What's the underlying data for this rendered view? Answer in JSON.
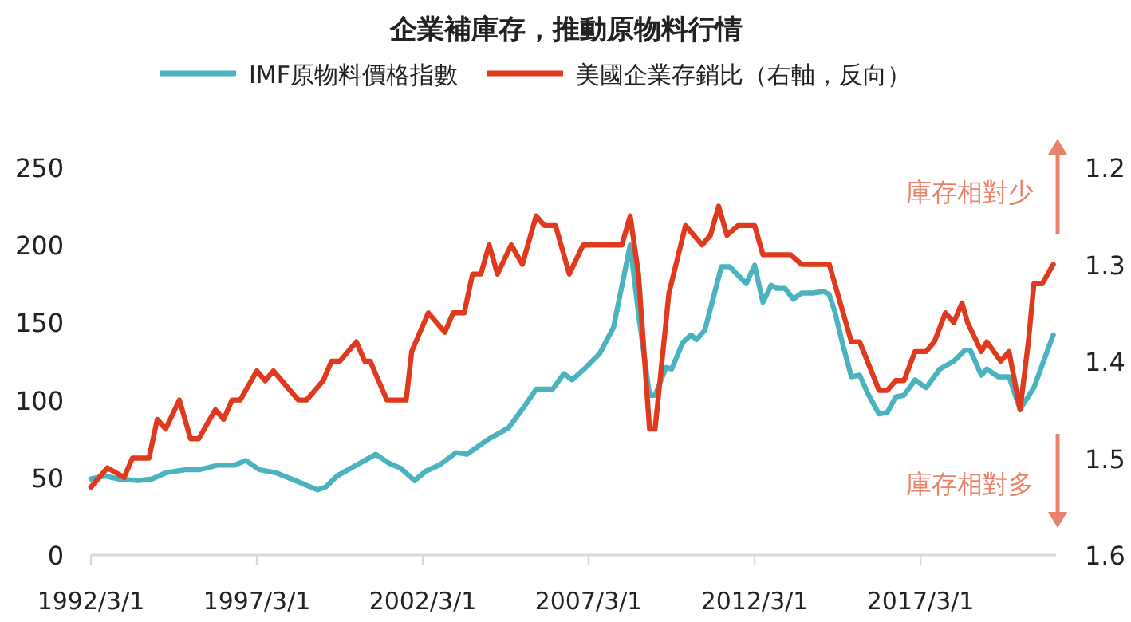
{
  "chart_data": {
    "type": "line",
    "title": "企業補庫存，推動原物料行情",
    "legend": "top",
    "line_style": "solid",
    "xlim": [
      "1992-03",
      "2021-04"
    ],
    "xticks": [
      {
        "value": "1992-03",
        "label": "1992/3/1"
      },
      {
        "value": "1997-03",
        "label": "1997/3/1"
      },
      {
        "value": "2002-03",
        "label": "2002/3/1"
      },
      {
        "value": "2007-03",
        "label": "2007/3/1"
      },
      {
        "value": "2012-03",
        "label": "2012/3/1"
      },
      {
        "value": "2017-03",
        "label": "2017/3/1"
      }
    ],
    "ylim": [
      0,
      250
    ],
    "yticks": [
      0,
      50,
      100,
      150,
      200,
      250
    ],
    "y2lim": [
      1.6,
      1.2
    ],
    "y2ticks": [
      1.2,
      1.3,
      1.4,
      1.5,
      1.6
    ],
    "annotations": [
      "庫存相對少",
      "庫存相對多"
    ],
    "series": [
      {
        "name": "IMF原物料價格指數",
        "color": "#4bb3c0",
        "x": [
          "1992-03",
          "1992-08",
          "1993-01",
          "1993-08",
          "1994-01",
          "1994-06",
          "1995-01",
          "1995-06",
          "1996-01",
          "1996-07",
          "1996-11",
          "1997-04",
          "1997-10",
          "1998-05",
          "1999-01",
          "1999-04",
          "1999-08",
          "2000-03",
          "2000-10",
          "2001-03",
          "2001-07",
          "2001-12",
          "2002-04",
          "2002-09",
          "2003-03",
          "2003-07",
          "2004-03",
          "2004-10",
          "2005-03",
          "2005-08",
          "2006-02",
          "2006-06",
          "2006-09",
          "2007-02",
          "2007-07",
          "2007-12",
          "2008-06",
          "2008-09",
          "2009-01",
          "2009-03",
          "2009-07",
          "2009-09",
          "2010-01",
          "2010-04",
          "2010-06",
          "2010-09",
          "2011-03",
          "2011-06",
          "2011-12",
          "2012-03",
          "2012-06",
          "2012-09",
          "2012-11",
          "2013-02",
          "2013-05",
          "2013-08",
          "2013-12",
          "2014-04",
          "2014-06",
          "2014-08",
          "2014-11",
          "2015-02",
          "2015-05",
          "2015-08",
          "2015-12",
          "2016-03",
          "2016-06",
          "2016-09",
          "2017-01",
          "2017-05",
          "2017-10",
          "2018-03",
          "2018-07",
          "2018-09",
          "2019-01",
          "2019-03",
          "2019-07",
          "2019-11",
          "2020-03",
          "2020-08",
          "2021-03"
        ],
        "values": [
          49,
          51,
          49,
          48,
          49,
          53,
          55,
          55,
          58,
          58,
          61,
          55,
          53,
          48,
          42,
          44,
          51,
          58,
          65,
          59,
          56,
          48,
          54,
          58,
          66,
          65,
          75,
          82,
          94,
          107,
          107,
          117,
          113,
          121,
          130,
          147,
          200,
          156,
          103,
          103,
          121,
          120,
          137,
          142,
          139,
          145,
          186,
          186,
          175,
          187,
          163,
          174,
          172,
          172,
          165,
          169,
          169,
          170,
          168,
          157,
          135,
          115,
          116,
          104,
          91,
          92,
          102,
          103,
          113,
          108,
          120,
          125,
          132,
          132,
          116,
          120,
          115,
          115,
          94,
          108,
          142
        ]
      },
      {
        "name": "美國企業存銷比（右軸，反向）",
        "color": "#e03a1e",
        "axis": "y2",
        "x": [
          "1992-03",
          "1992-09",
          "1993-03",
          "1993-06",
          "1993-12",
          "1994-03",
          "1994-06",
          "1994-11",
          "1995-03",
          "1995-06",
          "1995-12",
          "1996-03",
          "1996-06",
          "1996-09",
          "1997-03",
          "1997-06",
          "1997-09",
          "1998-06",
          "1998-09",
          "1999-03",
          "1999-06",
          "1999-09",
          "2000-03",
          "2000-06",
          "2000-08",
          "2001-02",
          "2001-09",
          "2001-11",
          "2002-05",
          "2002-11",
          "2003-02",
          "2003-06",
          "2003-09",
          "2003-12",
          "2004-03",
          "2004-06",
          "2004-11",
          "2005-03",
          "2005-08",
          "2005-11",
          "2006-03",
          "2006-05",
          "2006-08",
          "2007-01",
          "2008-03",
          "2008-06",
          "2008-09",
          "2009-01",
          "2009-03",
          "2009-08",
          "2010-02",
          "2010-08",
          "2010-11",
          "2011-02",
          "2011-05",
          "2011-09",
          "2012-03",
          "2012-06",
          "2013-04",
          "2013-08",
          "2014-06",
          "2014-08",
          "2015-02",
          "2015-05",
          "2015-12",
          "2016-03",
          "2016-06",
          "2016-09",
          "2017-01",
          "2017-05",
          "2017-08",
          "2017-12",
          "2018-03",
          "2018-06",
          "2018-08",
          "2019-01",
          "2019-03",
          "2019-08",
          "2019-11",
          "2020-03",
          "2020-06",
          "2020-08",
          "2020-11",
          "2021-03"
        ],
        "values": [
          1.53,
          1.51,
          1.52,
          1.5,
          1.5,
          1.46,
          1.47,
          1.44,
          1.48,
          1.48,
          1.45,
          1.46,
          1.44,
          1.44,
          1.41,
          1.42,
          1.41,
          1.44,
          1.44,
          1.42,
          1.4,
          1.4,
          1.38,
          1.4,
          1.4,
          1.44,
          1.44,
          1.39,
          1.35,
          1.37,
          1.35,
          1.35,
          1.31,
          1.31,
          1.28,
          1.31,
          1.28,
          1.3,
          1.25,
          1.26,
          1.26,
          1.28,
          1.31,
          1.28,
          1.28,
          1.25,
          1.31,
          1.47,
          1.47,
          1.33,
          1.26,
          1.28,
          1.27,
          1.24,
          1.27,
          1.26,
          1.26,
          1.29,
          1.29,
          1.3,
          1.3,
          1.32,
          1.38,
          1.38,
          1.43,
          1.43,
          1.42,
          1.42,
          1.39,
          1.39,
          1.38,
          1.35,
          1.36,
          1.34,
          1.36,
          1.39,
          1.38,
          1.4,
          1.39,
          1.45,
          1.38,
          1.32,
          1.32,
          1.3
        ]
      }
    ]
  }
}
